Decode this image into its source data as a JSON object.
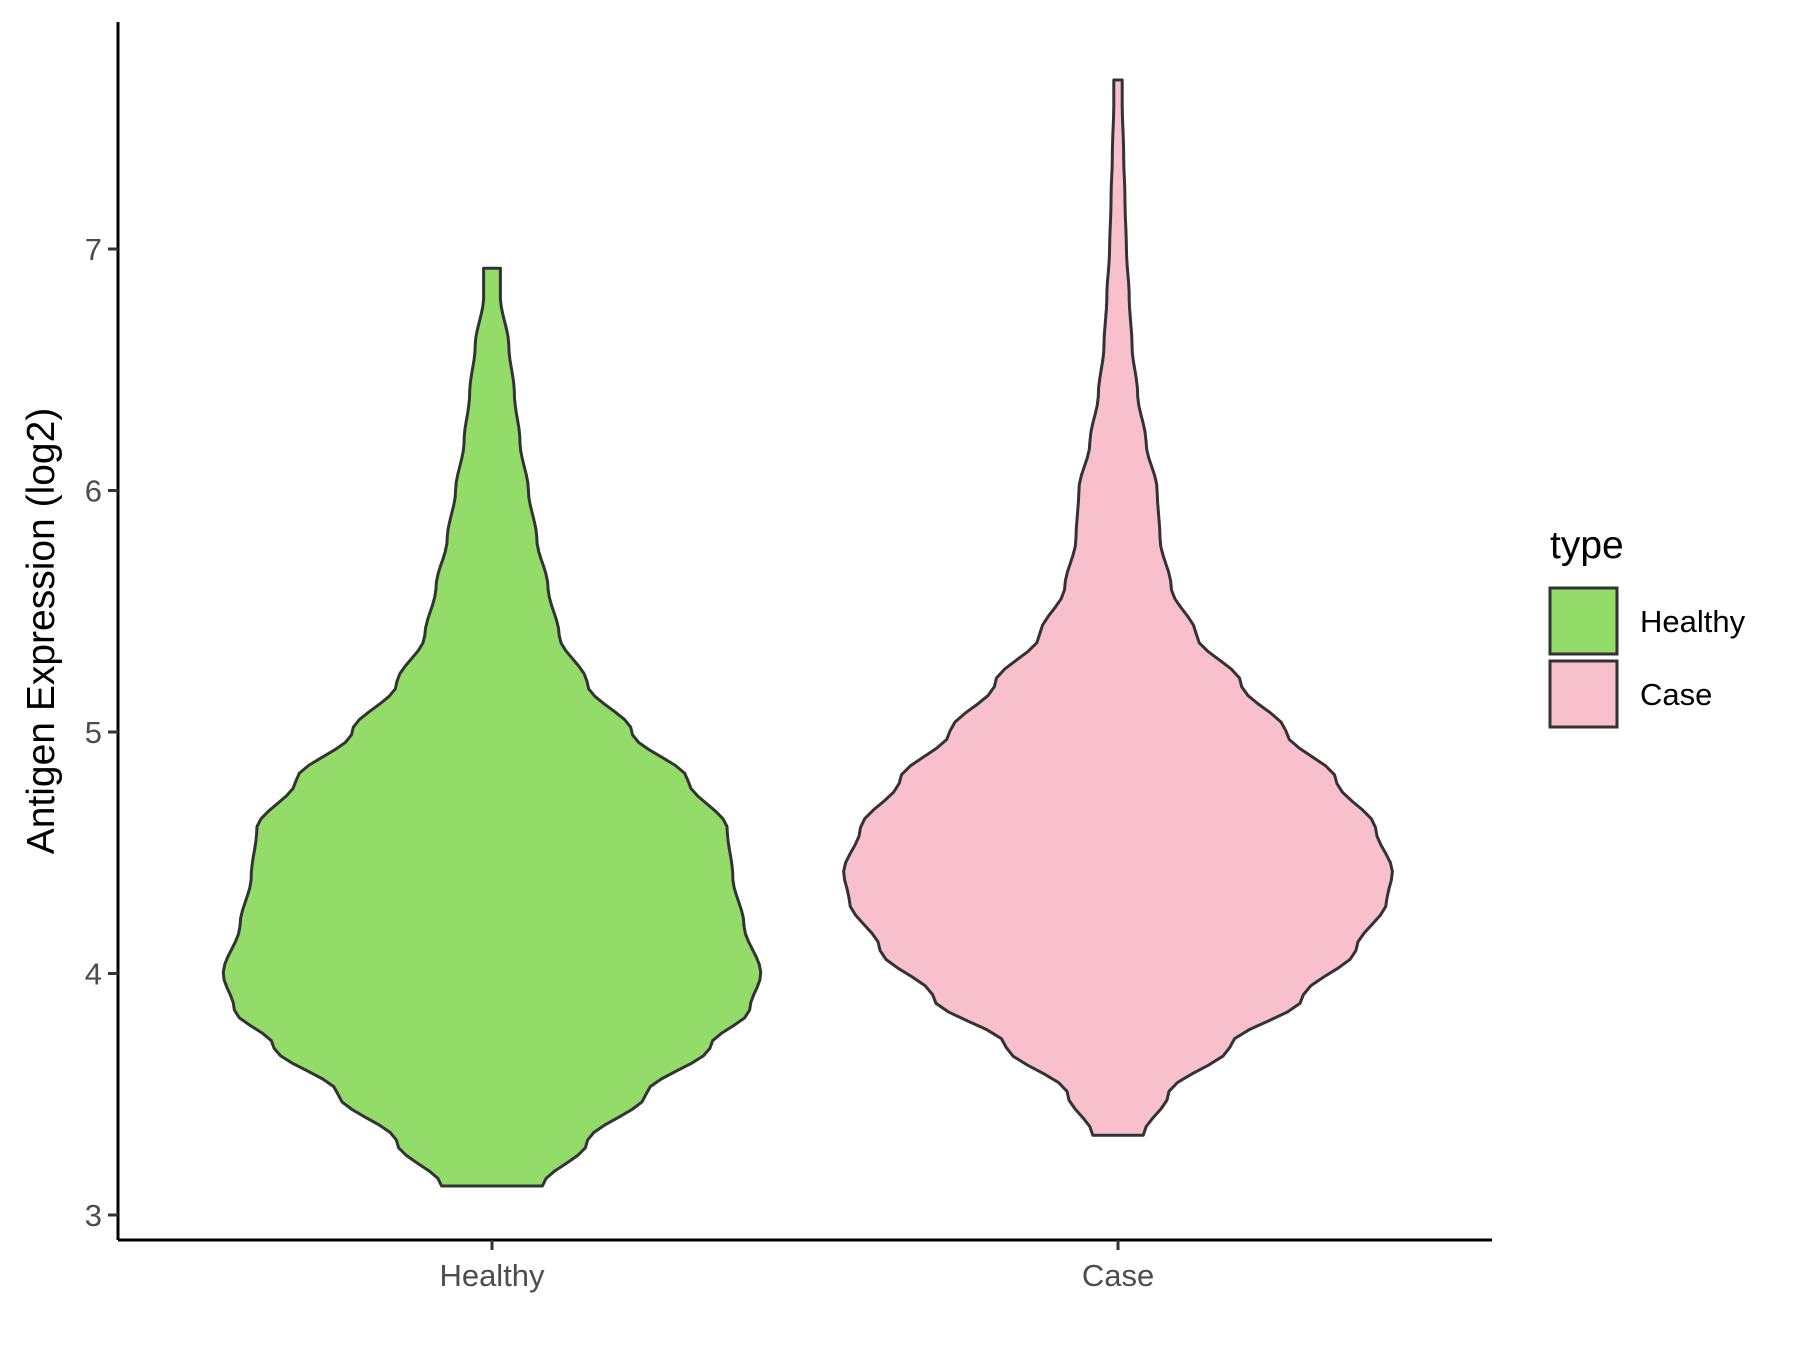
{
  "chart_data": {
    "type": "violin",
    "title": "",
    "xlabel": "",
    "ylabel": "Antigen Expression (log2)",
    "ylim": [
      2.9,
      7.95
    ],
    "yticks": [
      3,
      4,
      5,
      6,
      7
    ],
    "categories": [
      "Healthy",
      "Case"
    ],
    "grid": false,
    "legend": {
      "title": "type",
      "position": "right",
      "items": [
        {
          "label": "Healthy",
          "color": "#93DC6A"
        },
        {
          "label": "Case",
          "color": "#F7C0CC"
        }
      ]
    },
    "series": [
      {
        "name": "Healthy",
        "color": "#93DC6A",
        "y_min": 3.12,
        "y_max": 6.92,
        "density_profile": [
          [
            3.12,
            0.18
          ],
          [
            3.3,
            0.34
          ],
          [
            3.5,
            0.55
          ],
          [
            3.7,
            0.78
          ],
          [
            3.85,
            0.92
          ],
          [
            4.0,
            0.96
          ],
          [
            4.2,
            0.9
          ],
          [
            4.4,
            0.86
          ],
          [
            4.6,
            0.84
          ],
          [
            4.8,
            0.7
          ],
          [
            5.0,
            0.5
          ],
          [
            5.2,
            0.34
          ],
          [
            5.4,
            0.24
          ],
          [
            5.6,
            0.2
          ],
          [
            5.8,
            0.16
          ],
          [
            6.0,
            0.13
          ],
          [
            6.2,
            0.1
          ],
          [
            6.4,
            0.08
          ],
          [
            6.6,
            0.06
          ],
          [
            6.8,
            0.03
          ],
          [
            6.92,
            0.03
          ]
        ]
      },
      {
        "name": "Case",
        "color": "#F7C0CC",
        "y_min": 3.33,
        "y_max": 7.7,
        "density_profile": [
          [
            3.33,
            0.09
          ],
          [
            3.5,
            0.18
          ],
          [
            3.7,
            0.4
          ],
          [
            3.9,
            0.66
          ],
          [
            4.1,
            0.85
          ],
          [
            4.3,
            0.96
          ],
          [
            4.42,
            0.98
          ],
          [
            4.6,
            0.92
          ],
          [
            4.8,
            0.78
          ],
          [
            5.0,
            0.6
          ],
          [
            5.2,
            0.44
          ],
          [
            5.4,
            0.28
          ],
          [
            5.6,
            0.19
          ],
          [
            5.8,
            0.15
          ],
          [
            6.0,
            0.14
          ],
          [
            6.2,
            0.1
          ],
          [
            6.4,
            0.07
          ],
          [
            6.6,
            0.05
          ],
          [
            6.8,
            0.04
          ],
          [
            7.0,
            0.03
          ],
          [
            7.2,
            0.025
          ],
          [
            7.4,
            0.02
          ],
          [
            7.6,
            0.015
          ],
          [
            7.7,
            0.015
          ]
        ]
      }
    ]
  }
}
